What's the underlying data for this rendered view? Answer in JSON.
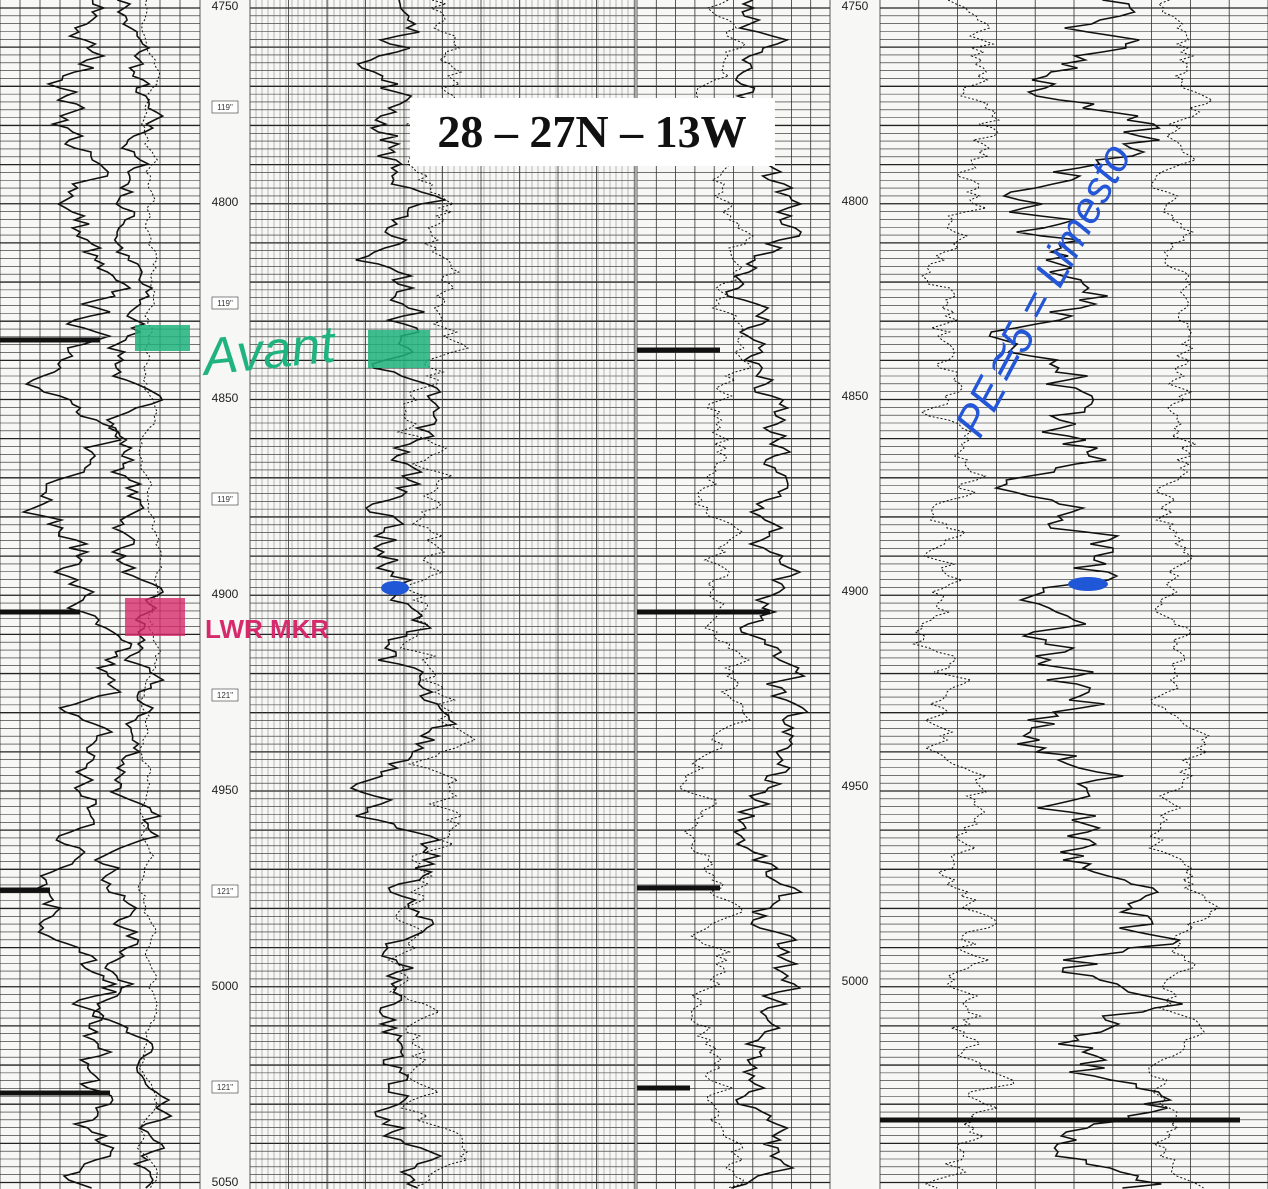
{
  "header": {
    "title": "28 – 27N – 13W"
  },
  "left_depth_scale": {
    "labels": [
      "4750",
      "4800",
      "4850",
      "4900",
      "4950",
      "5000",
      "5050"
    ]
  },
  "right_depth_scale": {
    "labels": [
      "4750",
      "4800",
      "4850",
      "4900",
      "4950",
      "5000"
    ]
  },
  "bit_size_markers": [
    "119\"",
    "119\"",
    "119\"",
    "121\"",
    "121\"",
    "121\""
  ],
  "annotations": {
    "top_marker": "Avant",
    "lower_marker": "LWR MKR",
    "pe_note": "PE≅5 = Limesto"
  }
}
